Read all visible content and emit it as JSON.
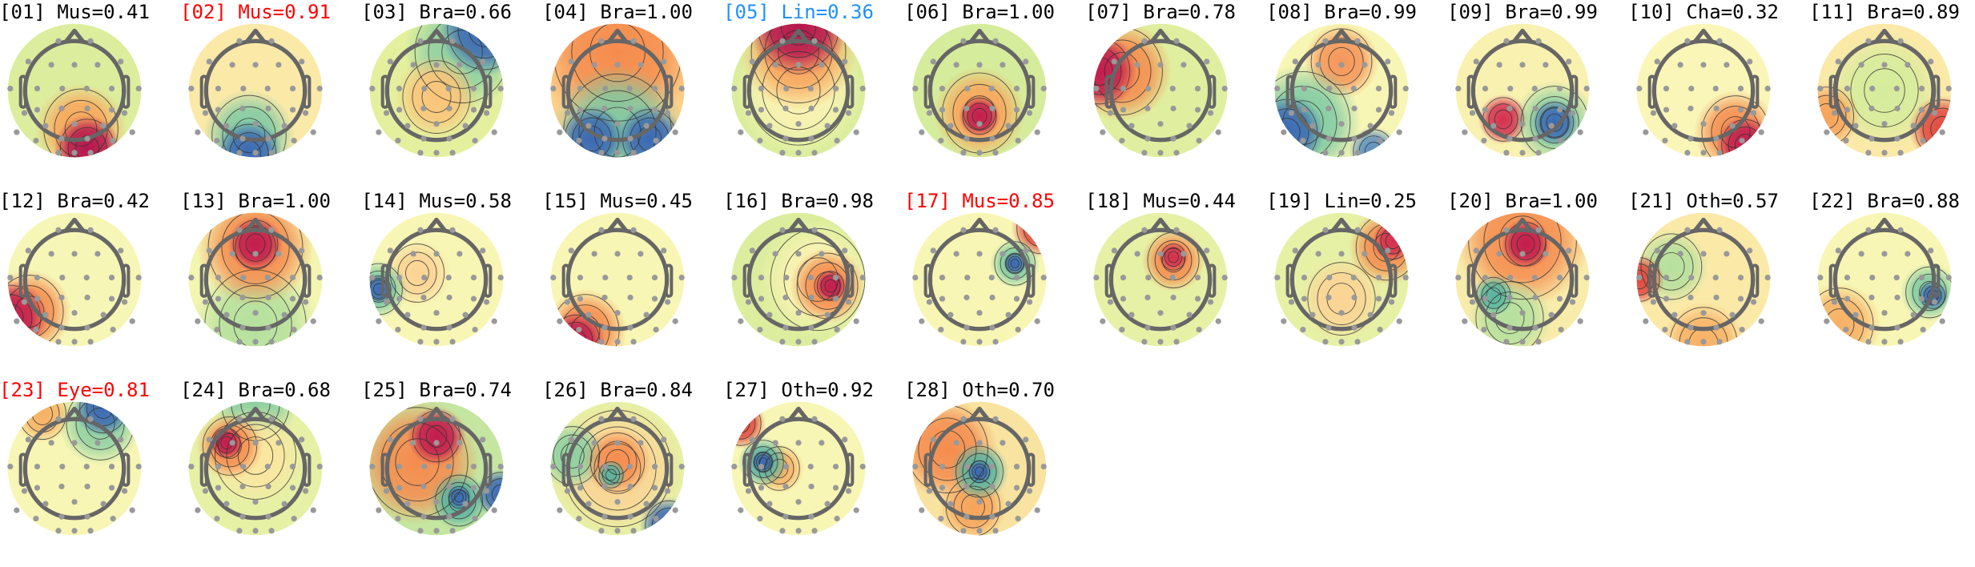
{
  "chart_data": {
    "type": "heatmap",
    "colormap": "RdYlBu_r",
    "layout": {
      "rows": 3,
      "columns": 11
    },
    "panels": [
      {
        "title": "[01] Mus=0.41",
        "component": 1,
        "class": "Mus",
        "probability": 0.41,
        "title_color": "#000000"
      },
      {
        "title": "[02] Mus=0.91",
        "component": 2,
        "class": "Mus",
        "probability": 0.91,
        "title_color": "#ff0000"
      },
      {
        "title": "[03] Bra=0.66",
        "component": 3,
        "class": "Bra",
        "probability": 0.66,
        "title_color": "#000000"
      },
      {
        "title": "[04] Bra=1.00",
        "component": 4,
        "class": "Bra",
        "probability": 1.0,
        "title_color": "#000000"
      },
      {
        "title": "[05] Lin=0.36",
        "component": 5,
        "class": "Lin",
        "probability": 0.36,
        "title_color": "#1e90ff"
      },
      {
        "title": "[06] Bra=1.00",
        "component": 6,
        "class": "Bra",
        "probability": 1.0,
        "title_color": "#000000"
      },
      {
        "title": "[07] Bra=0.78",
        "component": 7,
        "class": "Bra",
        "probability": 0.78,
        "title_color": "#000000"
      },
      {
        "title": "[08] Bra=0.99",
        "component": 8,
        "class": "Bra",
        "probability": 0.99,
        "title_color": "#000000"
      },
      {
        "title": "[09] Bra=0.99",
        "component": 9,
        "class": "Bra",
        "probability": 0.99,
        "title_color": "#000000"
      },
      {
        "title": "[10] Cha=0.32",
        "component": 10,
        "class": "Cha",
        "probability": 0.32,
        "title_color": "#000000"
      },
      {
        "title": "[11] Bra=0.89",
        "component": 11,
        "class": "Bra",
        "probability": 0.89,
        "title_color": "#000000"
      },
      {
        "title": "[12] Bra=0.42",
        "component": 12,
        "class": "Bra",
        "probability": 0.42,
        "title_color": "#000000"
      },
      {
        "title": "[13] Bra=1.00",
        "component": 13,
        "class": "Bra",
        "probability": 1.0,
        "title_color": "#000000"
      },
      {
        "title": "[14] Mus=0.58",
        "component": 14,
        "class": "Mus",
        "probability": 0.58,
        "title_color": "#000000"
      },
      {
        "title": "[15] Mus=0.45",
        "component": 15,
        "class": "Mus",
        "probability": 0.45,
        "title_color": "#000000"
      },
      {
        "title": "[16] Bra=0.98",
        "component": 16,
        "class": "Bra",
        "probability": 0.98,
        "title_color": "#000000"
      },
      {
        "title": "[17] Mus=0.85",
        "component": 17,
        "class": "Mus",
        "probability": 0.85,
        "title_color": "#ff0000"
      },
      {
        "title": "[18] Mus=0.44",
        "component": 18,
        "class": "Mus",
        "probability": 0.44,
        "title_color": "#000000"
      },
      {
        "title": "[19] Lin=0.25",
        "component": 19,
        "class": "Lin",
        "probability": 0.25,
        "title_color": "#000000"
      },
      {
        "title": "[20] Bra=1.00",
        "component": 20,
        "class": "Bra",
        "probability": 1.0,
        "title_color": "#000000"
      },
      {
        "title": "[21] Oth=0.57",
        "component": 21,
        "class": "Oth",
        "probability": 0.57,
        "title_color": "#000000"
      },
      {
        "title": "[22] Bra=0.88",
        "component": 22,
        "class": "Bra",
        "probability": 0.88,
        "title_color": "#000000"
      },
      {
        "title": "[23] Eye=0.81",
        "component": 23,
        "class": "Eye",
        "probability": 0.81,
        "title_color": "#ff0000"
      },
      {
        "title": "[24] Bra=0.68",
        "component": 24,
        "class": "Bra",
        "probability": 0.68,
        "title_color": "#000000"
      },
      {
        "title": "[25] Bra=0.74",
        "component": 25,
        "class": "Bra",
        "probability": 0.74,
        "title_color": "#000000"
      },
      {
        "title": "[26] Bra=0.84",
        "component": 26,
        "class": "Bra",
        "probability": 0.84,
        "title_color": "#000000"
      },
      {
        "title": "[27] Oth=0.92",
        "component": 27,
        "class": "Oth",
        "probability": 0.92,
        "title_color": "#000000"
      },
      {
        "title": "[28] Oth=0.70",
        "component": 28,
        "class": "Oth",
        "probability": 0.7,
        "title_color": "#000000"
      }
    ]
  }
}
